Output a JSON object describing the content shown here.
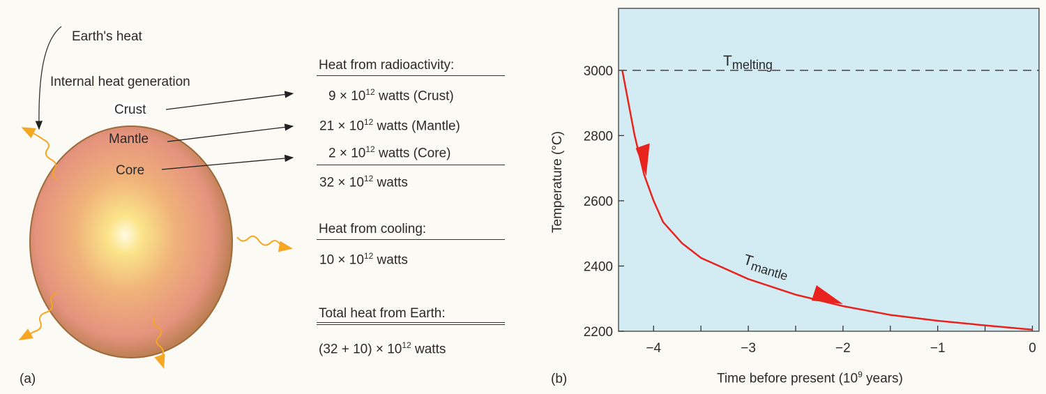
{
  "panel_a": {
    "label": "(a)",
    "earths_heat": "Earth's heat",
    "internal_heat": "Internal heat generation",
    "layers": {
      "crust": "Crust",
      "mantle": "Mantle",
      "core": "Core"
    },
    "radioactivity_heading": "Heat from radioactivity:",
    "rows": [
      {
        "coef": "9 × 10",
        "exp": "12",
        "rest": " watts (Crust)"
      },
      {
        "coef": "21 × 10",
        "exp": "12",
        "rest": " watts (Mantle)"
      },
      {
        "coef": "2 × 10",
        "exp": "12",
        "rest": " watts (Core)"
      }
    ],
    "subtotal": {
      "coef": "32 × 10",
      "exp": "12",
      "rest": " watts"
    },
    "cooling_heading": "Heat from cooling:",
    "cooling": {
      "coef": "10 × 10",
      "exp": "12",
      "rest": " watts"
    },
    "total_heading": "Total heat from Earth:",
    "total": {
      "coef": "(32 + 10) × 10",
      "exp": "12",
      "rest": " watts"
    }
  },
  "chart_data": {
    "type": "line",
    "panel_label": "(b)",
    "xlabel": "Time before present (10",
    "xlabel_exp": "9",
    "xlabel_end": " years)",
    "ylabel": "Temperature (°C)",
    "xlim": [
      -4.37,
      0.07
    ],
    "ylim": [
      2200,
      3190
    ],
    "xticks": [
      -4,
      -3,
      -2,
      -1,
      0
    ],
    "xtick_labels": [
      "−4",
      "−3",
      "−2",
      "−1",
      "0"
    ],
    "yticks": [
      2200,
      2400,
      2600,
      2800,
      3000
    ],
    "ytick_labels": [
      "2200",
      "2400",
      "2600",
      "2800",
      "3000"
    ],
    "melting": {
      "label": "T",
      "sub": "melting",
      "value": 3000
    },
    "series": [
      {
        "name": "T",
        "sub": "mantle",
        "x": [
          -4.33,
          -4.2,
          -4.1,
          -4.0,
          -3.9,
          -3.7,
          -3.5,
          -3.0,
          -2.5,
          -2.0,
          -1.5,
          -1.0,
          -0.5,
          0
        ],
        "y": [
          3000,
          2800,
          2680,
          2600,
          2535,
          2470,
          2425,
          2360,
          2312,
          2277,
          2250,
          2232,
          2218,
          2205
        ]
      }
    ],
    "colors": {
      "curve": "#e8231e",
      "background": "#d3ecf3",
      "dashed": "#444444"
    }
  }
}
